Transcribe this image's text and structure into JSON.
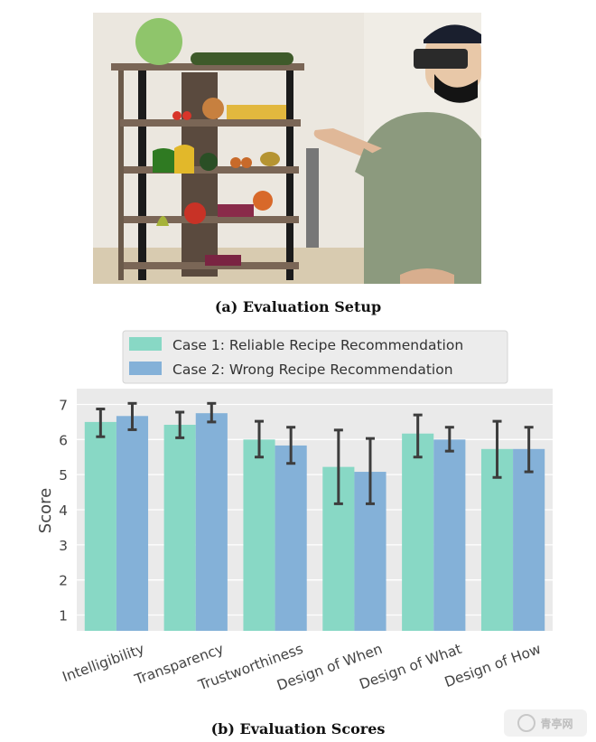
{
  "figure": {
    "caption_a": "(a) Evaluation Setup",
    "caption_b": "(b) Evaluation Scores",
    "watermark": "青亭网"
  },
  "colors": {
    "case1": "#88d8c5",
    "case2": "#84b1d8",
    "axes_bg": "#eaeaea",
    "grid": "#ffffff",
    "errorbar": "#3d3d3d"
  },
  "chart_data": {
    "type": "bar",
    "categories": [
      "Intelligibility",
      "Transparency",
      "Trustworthiness",
      "Design of When",
      "Design of What",
      "Design of How"
    ],
    "series": [
      {
        "name": "Case 1: Reliable Recipe Recommendation",
        "values": [
          6.5,
          6.42,
          6.0,
          5.22,
          6.17,
          5.73
        ],
        "err_low": [
          6.08,
          6.05,
          5.5,
          4.17,
          5.5,
          4.92
        ],
        "err_high": [
          6.87,
          6.78,
          6.52,
          6.27,
          6.7,
          6.52
        ]
      },
      {
        "name": "Case 2: Wrong Recipe Recommendation",
        "values": [
          6.67,
          6.75,
          5.83,
          5.08,
          6.0,
          5.73
        ],
        "err_low": [
          6.28,
          6.5,
          5.32,
          4.17,
          5.67,
          5.08
        ],
        "err_high": [
          7.03,
          7.03,
          6.35,
          6.03,
          6.35,
          6.35
        ]
      }
    ],
    "xlabel": "",
    "ylabel": "Score",
    "ylim": [
      0.55,
      7.45
    ],
    "yticks": [
      1,
      2,
      3,
      4,
      5,
      6,
      7
    ],
    "grid": true,
    "legend_placement": "top-center (above plot)",
    "xtick_rotation": -20
  }
}
